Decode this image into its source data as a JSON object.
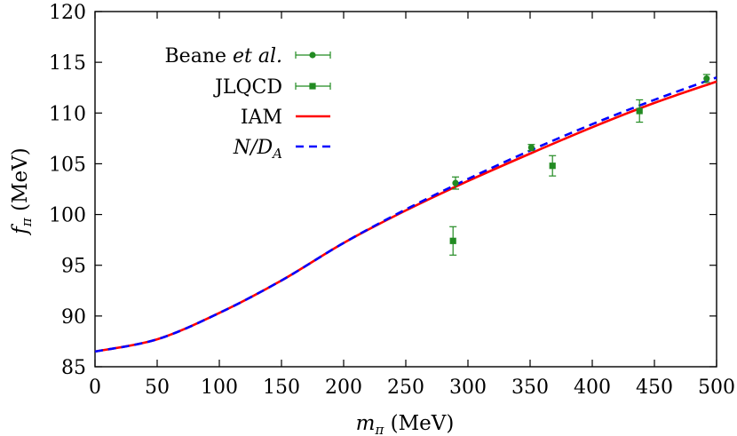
{
  "chart_data": {
    "type": "line",
    "xlabel": "m_π (MeV)",
    "ylabel": "f_π (MeV)",
    "xlim": [
      0,
      500
    ],
    "ylim": [
      85,
      120
    ],
    "x_ticks": [
      0,
      50,
      100,
      150,
      200,
      250,
      300,
      350,
      400,
      450,
      500
    ],
    "y_ticks": [
      85,
      90,
      95,
      100,
      105,
      110,
      115,
      120
    ],
    "grid": false,
    "legend_position": "top-left",
    "series": [
      {
        "name": "Beane et al.",
        "kind": "points",
        "marker": "circle",
        "color": "#228b22",
        "x": [
          290,
          351,
          492
        ],
        "y": [
          103.1,
          106.6,
          113.4
        ],
        "err": [
          0.6,
          0.3,
          0.4
        ]
      },
      {
        "name": "JLQCD",
        "kind": "points",
        "marker": "square",
        "color": "#228b22",
        "x": [
          288,
          368,
          438
        ],
        "y": [
          97.4,
          104.8,
          110.2
        ],
        "err": [
          1.4,
          1.0,
          1.1
        ]
      },
      {
        "name": "IAM",
        "kind": "line",
        "style": "solid",
        "color": "#ff0000",
        "x": [
          0,
          50,
          100,
          150,
          200,
          250,
          300,
          350,
          400,
          450,
          500
        ],
        "y": [
          86.5,
          87.7,
          90.3,
          93.5,
          97.2,
          100.4,
          103.3,
          106.0,
          108.6,
          111.0,
          113.1
        ]
      },
      {
        "name": "N/D_A",
        "kind": "line",
        "style": "dashed",
        "color": "#0000ff",
        "x": [
          0,
          50,
          100,
          150,
          200,
          250,
          300,
          350,
          400,
          450,
          500
        ],
        "y": [
          86.5,
          87.7,
          90.3,
          93.5,
          97.2,
          100.5,
          103.5,
          106.3,
          108.9,
          111.3,
          113.5
        ]
      }
    ]
  }
}
